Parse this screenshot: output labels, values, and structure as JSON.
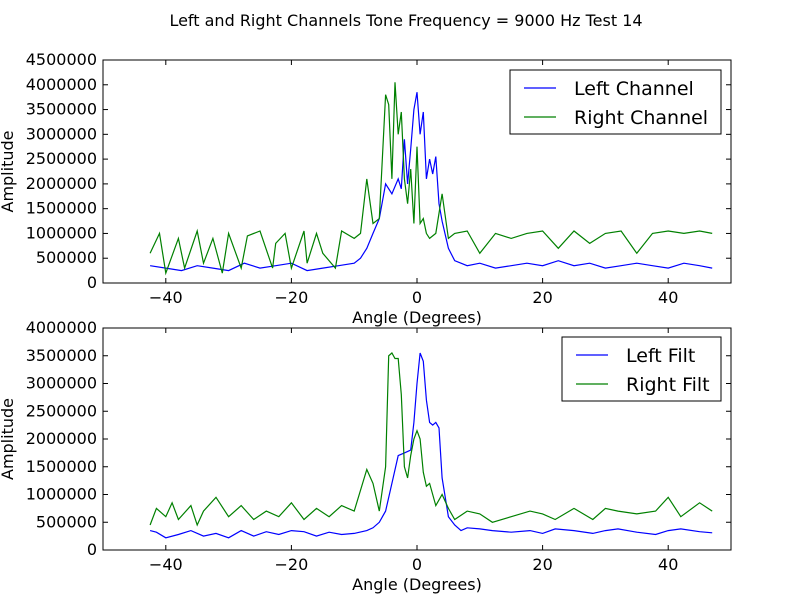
{
  "figure": {
    "suptitle": "Left and Right Channels Tone Frequency = 9000 Hz Test 14"
  },
  "colors": {
    "left": "#0000ff",
    "right": "#008000"
  },
  "chart_data": [
    {
      "type": "line",
      "xlabel": "Angle (Degrees)",
      "ylabel": "Amplitude",
      "xlim": [
        -50,
        50
      ],
      "ylim": [
        0,
        4500000
      ],
      "xticks": [
        -40,
        -20,
        0,
        20,
        40
      ],
      "yticks": [
        0,
        500000,
        1000000,
        1500000,
        2000000,
        2500000,
        3000000,
        3500000,
        4000000,
        4500000
      ],
      "legend_position": "top-right",
      "grid": false,
      "series": [
        {
          "name": "Left Channel",
          "color": "#0000ff",
          "x": [
            -42.5,
            -40,
            -37.5,
            -35,
            -32.5,
            -30,
            -27.5,
            -25,
            -22.5,
            -20,
            -17.5,
            -15,
            -12.5,
            -10,
            -9,
            -8,
            -7,
            -6,
            -5,
            -4,
            -3,
            -2.5,
            -2,
            -1.5,
            -1,
            -0.5,
            0,
            0.5,
            1,
            1.5,
            2,
            2.5,
            3,
            3.5,
            4,
            5,
            6,
            7,
            8,
            10,
            12.5,
            15,
            17.5,
            20,
            22.5,
            25,
            27.5,
            30,
            32.5,
            35,
            37.5,
            40,
            42.5,
            45,
            47
          ],
          "values": [
            350000,
            300000,
            250000,
            350000,
            300000,
            250000,
            400000,
            300000,
            350000,
            400000,
            250000,
            300000,
            350000,
            400000,
            500000,
            700000,
            1000000,
            1300000,
            2000000,
            1800000,
            2100000,
            1900000,
            2900000,
            2000000,
            2700000,
            3500000,
            3850000,
            3000000,
            3450000,
            2100000,
            2500000,
            2200000,
            2550000,
            1600000,
            1250000,
            700000,
            450000,
            400000,
            350000,
            400000,
            300000,
            350000,
            400000,
            350000,
            450000,
            350000,
            400000,
            300000,
            350000,
            400000,
            350000,
            300000,
            400000,
            350000,
            300000
          ]
        },
        {
          "name": "Right Channel",
          "color": "#008000",
          "x": [
            -42.5,
            -41,
            -40,
            -38,
            -37,
            -35,
            -34,
            -32.5,
            -31,
            -30,
            -28,
            -27,
            -25,
            -23,
            -22.5,
            -21,
            -20,
            -18,
            -17.5,
            -16,
            -15,
            -13,
            -12,
            -10,
            -9,
            -8,
            -7,
            -6,
            -5,
            -4.5,
            -4,
            -3.5,
            -3,
            -2.5,
            -2,
            -1.5,
            -1,
            -0.5,
            0,
            0.5,
            1,
            1.5,
            2,
            3,
            4,
            5,
            6,
            8,
            10,
            12.5,
            15,
            17.5,
            20,
            22.5,
            25,
            27.5,
            30,
            32.5,
            35,
            37.5,
            40,
            42.5,
            45,
            47
          ],
          "values": [
            600000,
            1000000,
            200000,
            900000,
            300000,
            1050000,
            400000,
            900000,
            200000,
            1000000,
            300000,
            950000,
            1050000,
            300000,
            800000,
            1000000,
            300000,
            1050000,
            400000,
            1000000,
            600000,
            300000,
            1050000,
            900000,
            1000000,
            2100000,
            1200000,
            1300000,
            3800000,
            3600000,
            2100000,
            4050000,
            3000000,
            3450000,
            2100000,
            1600000,
            2300000,
            1200000,
            2750000,
            1200000,
            1300000,
            1000000,
            900000,
            1000000,
            1800000,
            900000,
            1000000,
            1050000,
            600000,
            1000000,
            900000,
            1000000,
            1050000,
            700000,
            1050000,
            800000,
            1000000,
            1050000,
            600000,
            1000000,
            1050000,
            1000000,
            1050000,
            1000000
          ]
        }
      ]
    },
    {
      "type": "line",
      "xlabel": "Angle (Degrees)",
      "ylabel": "Amplitude",
      "xlim": [
        -50,
        50
      ],
      "ylim": [
        0,
        4000000
      ],
      "xticks": [
        -40,
        -20,
        0,
        20,
        40
      ],
      "yticks": [
        0,
        500000,
        1000000,
        1500000,
        2000000,
        2500000,
        3000000,
        3500000,
        4000000
      ],
      "legend_position": "top-right",
      "grid": false,
      "series": [
        {
          "name": "Left Filt",
          "color": "#0000ff",
          "x": [
            -42.5,
            -41.5,
            -40,
            -38,
            -36,
            -34,
            -32,
            -30,
            -28,
            -26,
            -24,
            -22,
            -20,
            -18,
            -16,
            -14,
            -12,
            -10,
            -8,
            -7,
            -6,
            -5,
            -4,
            -3,
            -2,
            -1,
            -0.5,
            0,
            0.5,
            1,
            1.5,
            2,
            2.5,
            3,
            3.5,
            4,
            5,
            6,
            7,
            8,
            10,
            12,
            15,
            18,
            20,
            22,
            25,
            28,
            30,
            32,
            35,
            38,
            40,
            42,
            45,
            47
          ],
          "values": [
            350000,
            320000,
            220000,
            280000,
            350000,
            250000,
            300000,
            220000,
            350000,
            250000,
            330000,
            280000,
            350000,
            330000,
            250000,
            320000,
            280000,
            300000,
            350000,
            400000,
            500000,
            700000,
            1200000,
            1700000,
            1750000,
            1800000,
            2300000,
            3000000,
            3550000,
            3400000,
            2700000,
            2300000,
            2250000,
            2300000,
            2200000,
            1300000,
            600000,
            450000,
            350000,
            400000,
            380000,
            350000,
            320000,
            350000,
            300000,
            380000,
            350000,
            300000,
            350000,
            380000,
            320000,
            280000,
            350000,
            380000,
            330000,
            310000
          ]
        },
        {
          "name": "Right Filt",
          "color": "#008000",
          "x": [
            -42.5,
            -41.5,
            -40,
            -39,
            -38,
            -36,
            -35,
            -34,
            -32,
            -30,
            -28,
            -26,
            -24,
            -22,
            -20,
            -18,
            -16,
            -14,
            -12,
            -10,
            -8,
            -7,
            -6,
            -5,
            -4.5,
            -4,
            -3.5,
            -3,
            -2.5,
            -2,
            -1.5,
            -1,
            -0.5,
            0,
            0.5,
            1,
            1.5,
            2,
            3,
            4,
            5,
            6,
            8,
            10,
            12,
            15,
            18,
            20,
            22,
            25,
            28,
            30,
            32,
            35,
            38,
            40,
            42,
            45,
            47
          ],
          "values": [
            450000,
            750000,
            600000,
            850000,
            550000,
            800000,
            450000,
            700000,
            950000,
            600000,
            800000,
            550000,
            700000,
            600000,
            850000,
            550000,
            750000,
            600000,
            800000,
            700000,
            1450000,
            1200000,
            700000,
            1500000,
            3500000,
            3550000,
            3450000,
            3450000,
            2800000,
            1500000,
            1300000,
            1700000,
            2000000,
            2150000,
            2000000,
            1400000,
            1150000,
            1200000,
            800000,
            1000000,
            750000,
            550000,
            700000,
            650000,
            500000,
            600000,
            700000,
            650000,
            550000,
            750000,
            550000,
            750000,
            700000,
            650000,
            700000,
            950000,
            600000,
            850000,
            700000
          ]
        }
      ]
    }
  ]
}
